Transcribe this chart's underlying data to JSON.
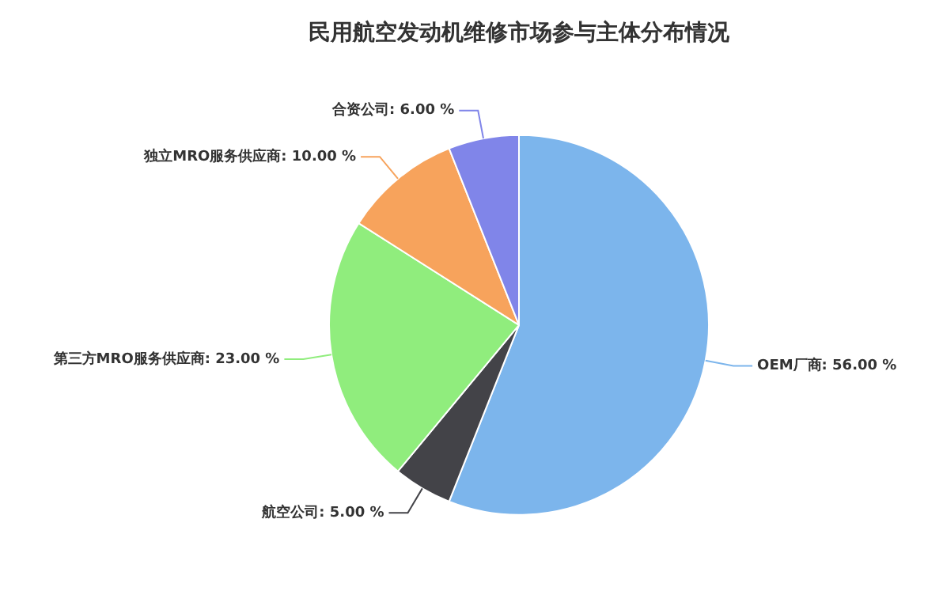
{
  "chart_data": {
    "type": "pie",
    "title": "民用航空发动机维修市场参与主体分布情况",
    "categories": [
      "OEM厂商",
      "航空公司",
      "第三方MRO服务供应商",
      "独立MRO服务供应商",
      "合资公司"
    ],
    "values": [
      56,
      5,
      23,
      10,
      6
    ],
    "value_labels": [
      "56.00 %",
      "5.00 %",
      "23.00 %",
      "10.00 %",
      "6.00 %"
    ],
    "colors": [
      "#7cb5ec",
      "#434348",
      "#90ed7d",
      "#f7a35c",
      "#8085e9"
    ],
    "legend": false
  }
}
